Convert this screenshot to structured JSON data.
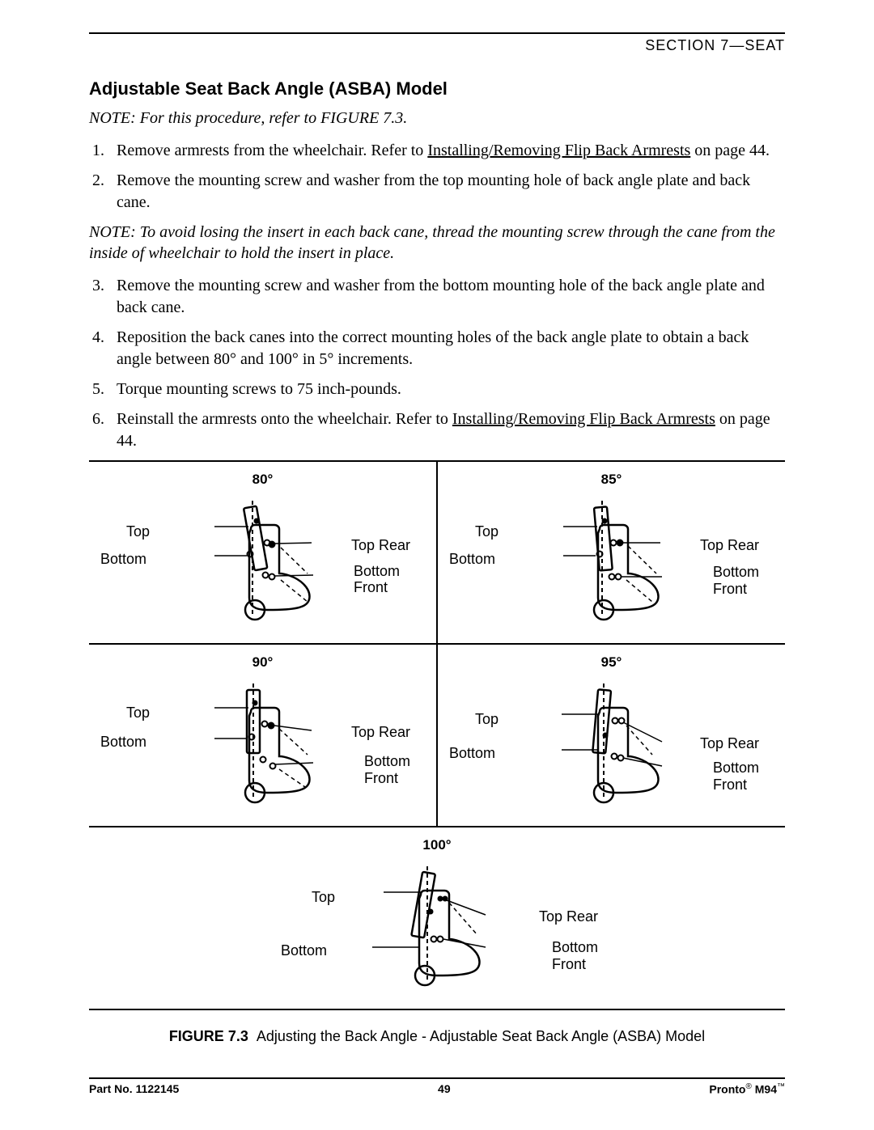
{
  "header": {
    "section": "SECTION 7—SEAT"
  },
  "title": "Adjustable Seat Back Angle (ASBA) Model",
  "note1": "NOTE: For this procedure, refer to FIGURE 7.3.",
  "steps": {
    "s1a": "Remove armrests from the wheelchair. Refer to ",
    "s1link": "Installing/Removing Flip Back Armrests",
    "s1b": " on page 44.",
    "s2": "Remove the mounting screw and washer from the top mounting hole of back angle plate and back cane.",
    "s3": "Remove the mounting screw and washer from the bottom mounting hole of the back angle plate and back cane.",
    "s4": "Reposition the back canes into the correct mounting holes of the back angle plate to obtain a back angle between 80° and 100° in 5° increments.",
    "s5": "Torque mounting screws to 75 inch-pounds.",
    "s6a": "Reinstall the armrests onto the wheelchair. Refer to ",
    "s6link": "Installing/Removing Flip Back Armrests",
    "s6b": " on page 44."
  },
  "note2": "NOTE: To avoid losing the insert in each back cane, thread the mounting screw through the cane from the inside of wheelchair to hold the insert in place.",
  "angles": {
    "a80": "80°",
    "a85": "85°",
    "a90": "90°",
    "a95": "95°",
    "a100": "100°"
  },
  "labels": {
    "top": "Top",
    "bottom": "Bottom",
    "topRear": "Top Rear",
    "bottomFront": "Bottom Front"
  },
  "caption": {
    "figLabel": "FIGURE 7.3",
    "text": "Adjusting the Back Angle - Adjustable Seat Back Angle (ASBA) Model"
  },
  "footer": {
    "partNo": "Part No. 1122145",
    "page": "49",
    "brand_a": "Pronto",
    "brand_b": "M94"
  },
  "style": {
    "stroke": "#000000",
    "dash": "5,4",
    "bg": "#ffffff"
  }
}
